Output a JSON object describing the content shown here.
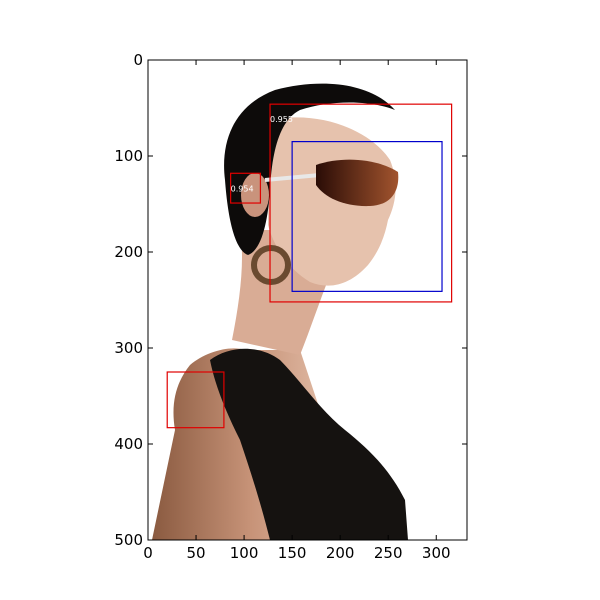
{
  "image": {
    "description_free": true,
    "width_units": 332,
    "height_units": 500
  },
  "axes": {
    "x_ticks": [
      0,
      50,
      100,
      150,
      200,
      250,
      300
    ],
    "y_ticks": [
      0,
      100,
      200,
      300,
      400,
      500
    ],
    "x_range": [
      0,
      332
    ],
    "y_range": [
      0,
      500
    ],
    "y_inverted": true
  },
  "detections": [
    {
      "id": "face-outer",
      "color": "#e00000",
      "x1": 127,
      "y1": 46,
      "x2": 316,
      "y2": 252,
      "score": "0.955"
    },
    {
      "id": "ear",
      "color": "#e00000",
      "x1": 86,
      "y1": 118,
      "x2": 117,
      "y2": 149,
      "score": "0.954"
    },
    {
      "id": "shoulder",
      "color": "#e00000",
      "x1": 20,
      "y1": 325,
      "x2": 79,
      "y2": 383,
      "score": ""
    },
    {
      "id": "face-inner",
      "color": "#0000cc",
      "x1": 150,
      "y1": 85,
      "x2": 306,
      "y2": 241,
      "score": ""
    }
  ]
}
